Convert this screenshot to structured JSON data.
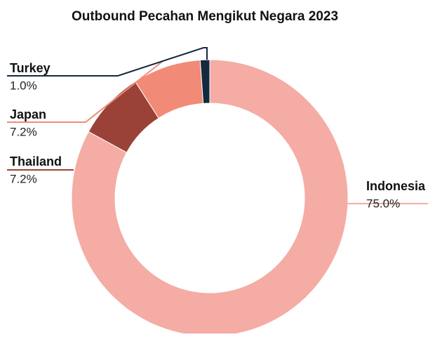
{
  "chart_data": {
    "type": "donut",
    "title": "Outbound Pecahan Mengikut Negara 2023",
    "categories": [
      "Indonesia",
      "Thailand",
      "Japan",
      "Turkey"
    ],
    "values": [
      75.0,
      7.2,
      7.2,
      1.0
    ],
    "value_labels": [
      "75.0%",
      "7.2%",
      "7.2%",
      "1.0%"
    ],
    "colors": [
      "#f4aca4",
      "#9a4238",
      "#f28a78",
      "#13293d"
    ]
  }
}
